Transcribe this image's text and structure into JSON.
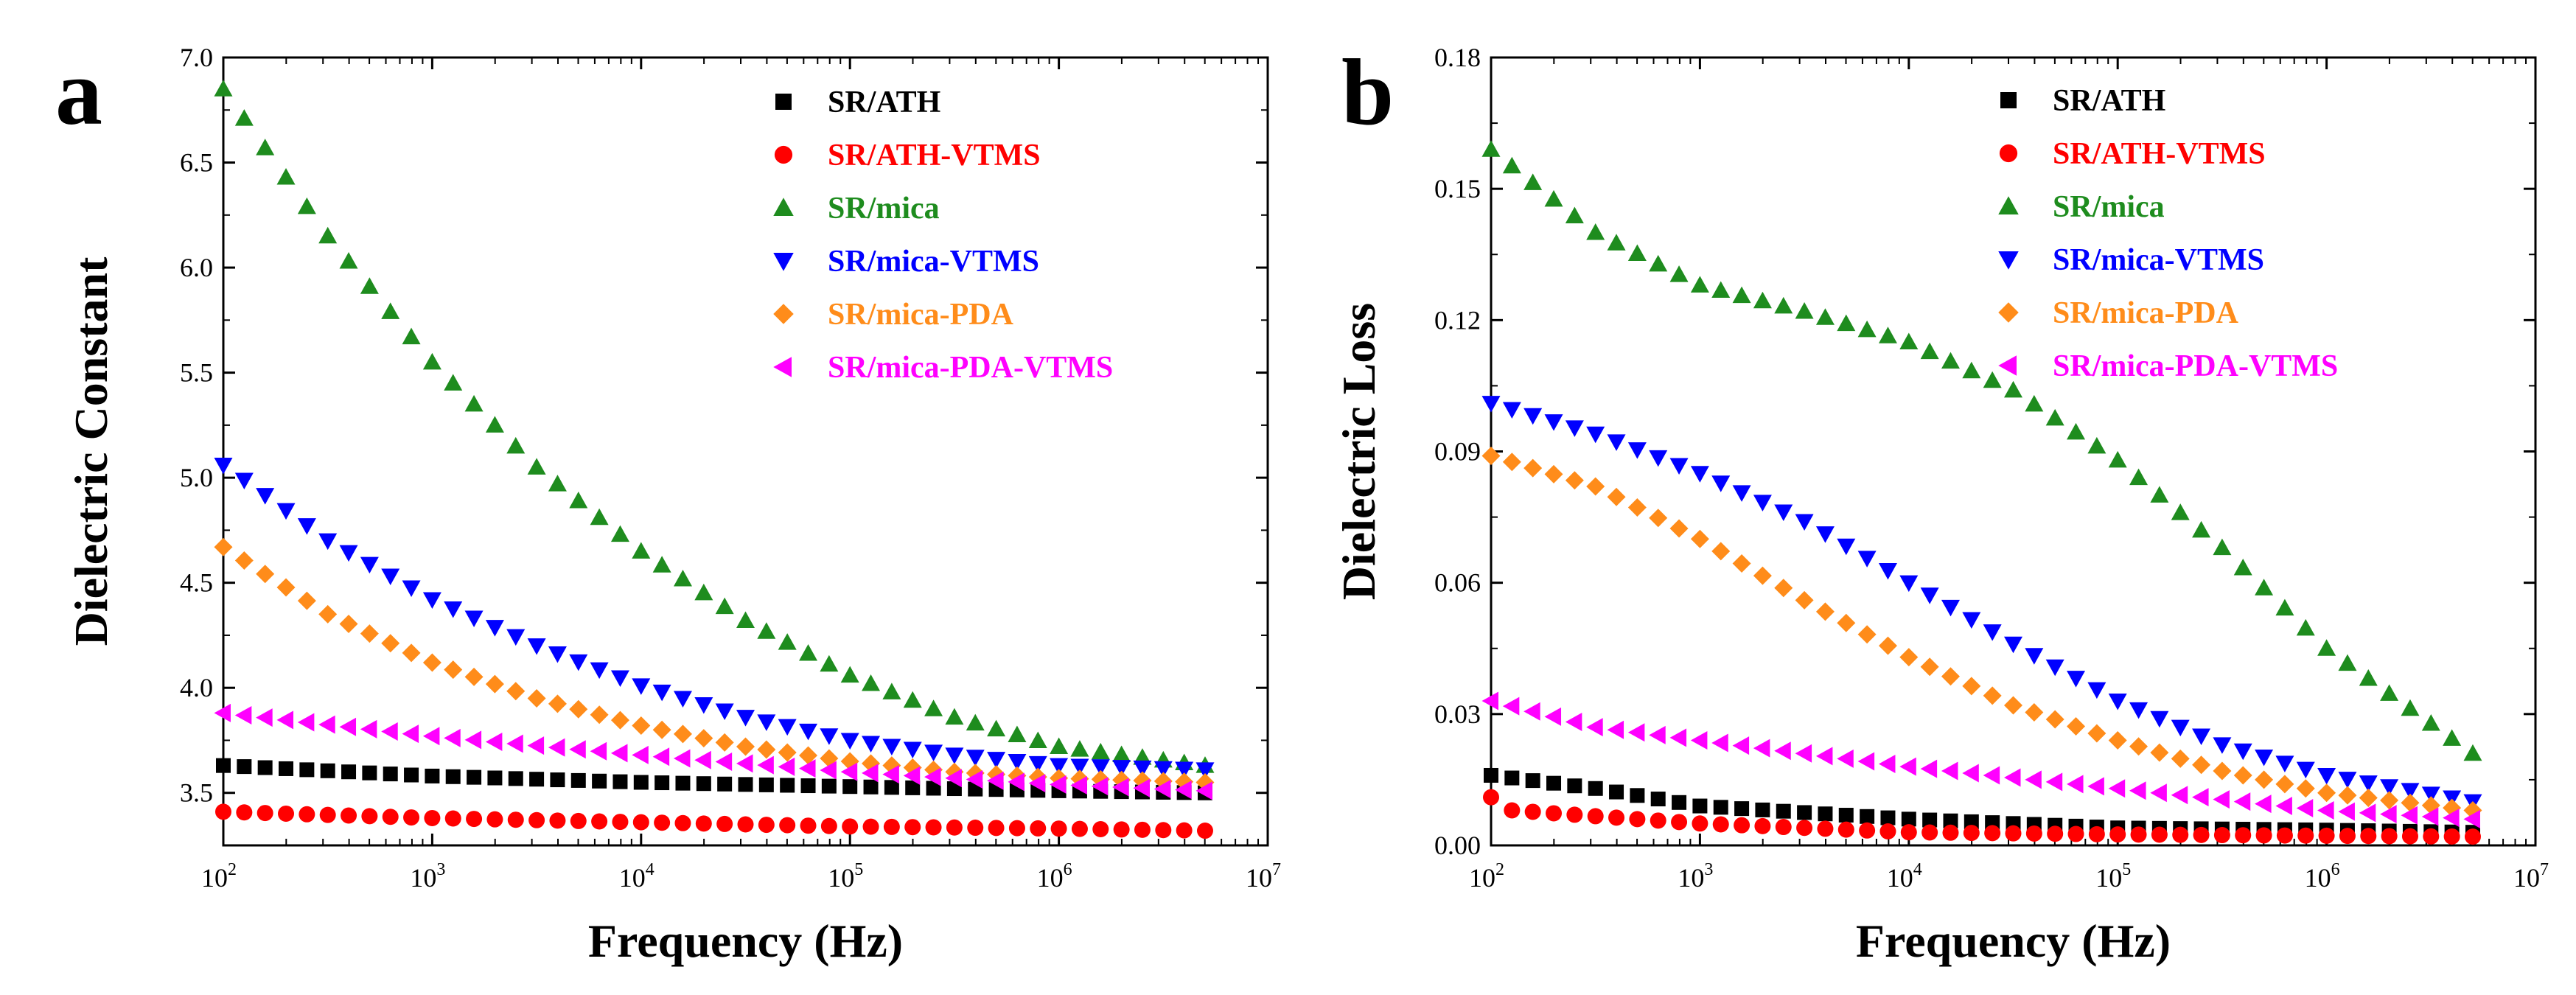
{
  "panels": [
    {
      "letter": "a",
      "chart_data": {
        "type": "scatter",
        "title": "",
        "xlabel": "Frequency (Hz)",
        "ylabel": "Dielectric Constant",
        "xscale": "log",
        "xlim": [
          100,
          10000000
        ],
        "ylim": [
          3.25,
          7.0
        ],
        "xticks": [
          2,
          3,
          4,
          5,
          6,
          7
        ],
        "yticks": [
          "3.5",
          "4.0",
          "4.5",
          "5.0",
          "5.5",
          "6.0",
          "6.5",
          "7.0"
        ],
        "legend_position": "top-right",
        "x_log10_range": [
          2.0,
          6.7
        ],
        "series": [
          {
            "name": "SR/ATH",
            "marker": "square",
            "color": "#000000",
            "anchors": [
              [
                2.0,
                3.63
              ],
              [
                3.0,
                3.58
              ],
              [
                4.0,
                3.55
              ],
              [
                5.0,
                3.53
              ],
              [
                6.0,
                3.51
              ],
              [
                6.7,
                3.5
              ]
            ]
          },
          {
            "name": "SR/ATH-VTMS",
            "marker": "circle",
            "color": "#ff0000",
            "anchors": [
              [
                2.0,
                3.41
              ],
              [
                3.0,
                3.38
              ],
              [
                4.0,
                3.36
              ],
              [
                5.0,
                3.34
              ],
              [
                6.0,
                3.33
              ],
              [
                6.7,
                3.32
              ]
            ]
          },
          {
            "name": "SR/mica",
            "marker": "triangle-up",
            "color": "#1e8c1e",
            "anchors": [
              [
                2.0,
                6.85
              ],
              [
                2.5,
                6.15
              ],
              [
                3.0,
                5.55
              ],
              [
                3.5,
                5.05
              ],
              [
                4.0,
                4.65
              ],
              [
                4.5,
                4.32
              ],
              [
                5.0,
                4.06
              ],
              [
                5.5,
                3.86
              ],
              [
                6.0,
                3.72
              ],
              [
                6.7,
                3.63
              ]
            ]
          },
          {
            "name": "SR/mica-VTMS",
            "marker": "triangle-down",
            "color": "#0000ff",
            "anchors": [
              [
                2.0,
                5.06
              ],
              [
                2.5,
                4.7
              ],
              [
                3.0,
                4.42
              ],
              [
                3.5,
                4.2
              ],
              [
                4.0,
                4.01
              ],
              [
                4.5,
                3.86
              ],
              [
                5.0,
                3.75
              ],
              [
                5.5,
                3.68
              ],
              [
                6.0,
                3.63
              ],
              [
                6.7,
                3.61
              ]
            ]
          },
          {
            "name": "SR/mica-PDA",
            "marker": "diamond",
            "color": "#ff8c1a",
            "anchors": [
              [
                2.0,
                4.67
              ],
              [
                2.5,
                4.35
              ],
              [
                3.0,
                4.12
              ],
              [
                3.5,
                3.95
              ],
              [
                4.0,
                3.82
              ],
              [
                4.5,
                3.72
              ],
              [
                5.0,
                3.65
              ],
              [
                5.5,
                3.6
              ],
              [
                6.0,
                3.57
              ],
              [
                6.7,
                3.55
              ]
            ]
          },
          {
            "name": "SR/mica-PDA-VTMS",
            "marker": "triangle-left",
            "color": "#ff00ff",
            "anchors": [
              [
                2.0,
                3.88
              ],
              [
                3.0,
                3.77
              ],
              [
                4.0,
                3.68
              ],
              [
                5.0,
                3.6
              ],
              [
                6.0,
                3.54
              ],
              [
                6.7,
                3.51
              ]
            ]
          }
        ]
      }
    },
    {
      "letter": "b",
      "chart_data": {
        "type": "scatter",
        "title": "",
        "xlabel": "Frequency (Hz)",
        "ylabel": "Dielectric Loss",
        "xscale": "log",
        "xlim": [
          100,
          10000000
        ],
        "ylim": [
          0.0,
          0.18
        ],
        "xticks": [
          2,
          3,
          4,
          5,
          6,
          7
        ],
        "yticks": [
          "0.00",
          "0.03",
          "0.06",
          "0.09",
          "0.12",
          "0.15",
          "0.18"
        ],
        "legend_position": "top-right",
        "x_log10_range": [
          2.0,
          6.7
        ],
        "series": [
          {
            "name": "SR/ATH",
            "marker": "square",
            "color": "#000000",
            "anchors": [
              [
                2.0,
                0.016
              ],
              [
                2.5,
                0.013
              ],
              [
                3.0,
                0.009
              ],
              [
                4.0,
                0.006
              ],
              [
                5.0,
                0.004
              ],
              [
                6.0,
                0.0035
              ],
              [
                6.7,
                0.003
              ]
            ]
          },
          {
            "name": "SR/ATH-VTMS",
            "marker": "circle",
            "color": "#ff0000",
            "anchors": [
              [
                2.0,
                0.011
              ],
              [
                2.1,
                0.008
              ],
              [
                3.0,
                0.005
              ],
              [
                4.0,
                0.003
              ],
              [
                5.0,
                0.0025
              ],
              [
                6.0,
                0.0022
              ],
              [
                6.7,
                0.002
              ]
            ]
          },
          {
            "name": "SR/mica",
            "marker": "triangle-up",
            "color": "#1e8c1e",
            "anchors": [
              [
                2.0,
                0.159
              ],
              [
                2.5,
                0.14
              ],
              [
                3.0,
                0.128
              ],
              [
                3.5,
                0.122
              ],
              [
                4.0,
                0.115
              ],
              [
                4.5,
                0.104
              ],
              [
                5.0,
                0.088
              ],
              [
                5.5,
                0.068
              ],
              [
                6.0,
                0.045
              ],
              [
                6.7,
                0.021
              ]
            ]
          },
          {
            "name": "SR/mica-VTMS",
            "marker": "triangle-down",
            "color": "#0000ff",
            "anchors": [
              [
                2.0,
                0.101
              ],
              [
                2.5,
                0.094
              ],
              [
                3.0,
                0.085
              ],
              [
                3.5,
                0.074
              ],
              [
                4.0,
                0.06
              ],
              [
                4.5,
                0.046
              ],
              [
                5.0,
                0.033
              ],
              [
                5.5,
                0.023
              ],
              [
                6.0,
                0.016
              ],
              [
                6.7,
                0.01
              ]
            ]
          },
          {
            "name": "SR/mica-PDA",
            "marker": "diamond",
            "color": "#ff8c1a",
            "anchors": [
              [
                2.0,
                0.089
              ],
              [
                2.5,
                0.082
              ],
              [
                3.0,
                0.07
              ],
              [
                3.5,
                0.056
              ],
              [
                4.0,
                0.043
              ],
              [
                4.5,
                0.032
              ],
              [
                5.0,
                0.024
              ],
              [
                5.5,
                0.017
              ],
              [
                6.0,
                0.012
              ],
              [
                6.7,
                0.008
              ]
            ]
          },
          {
            "name": "SR/mica-PDA-VTMS",
            "marker": "triangle-left",
            "color": "#ff00ff",
            "anchors": [
              [
                2.0,
                0.033
              ],
              [
                2.5,
                0.027
              ],
              [
                3.0,
                0.024
              ],
              [
                4.0,
                0.018
              ],
              [
                5.0,
                0.013
              ],
              [
                6.0,
                0.008
              ],
              [
                6.7,
                0.006
              ]
            ]
          }
        ]
      }
    }
  ]
}
